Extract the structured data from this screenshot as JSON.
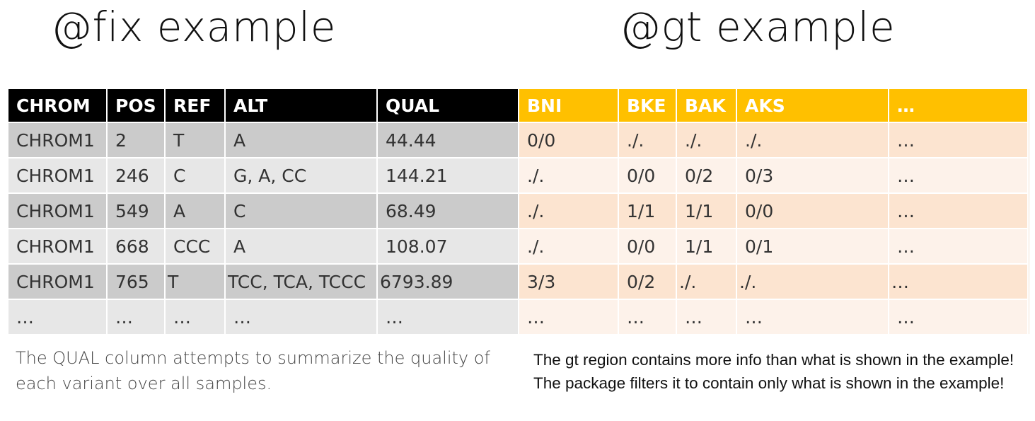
{
  "fix": {
    "title": "@fix example",
    "headers": [
      "CHROM",
      "POS",
      "REF",
      "ALT",
      "QUAL"
    ],
    "rows": [
      [
        "CHROM1",
        "2",
        "T",
        "A",
        "44.44"
      ],
      [
        "CHROM1",
        "246",
        "C",
        "G, A, CC",
        "144.21"
      ],
      [
        "CHROM1",
        "549",
        "A",
        "C",
        "68.49"
      ],
      [
        "CHROM1",
        "668",
        "CCC",
        "A",
        "108.07"
      ],
      [
        "CHROM1",
        "765",
        "T",
        "TCC, TCA, TCCC",
        "6793.89"
      ],
      [
        "…",
        "…",
        "…",
        "…",
        "…"
      ]
    ],
    "caption": "The QUAL column attempts to summarize the quality of each variant over all samples.",
    "colors": {
      "header_bg": "#000000",
      "row_dark": "#cbcbcb",
      "row_light": "#e7e7e7"
    }
  },
  "gt": {
    "title": "@gt example",
    "headers": [
      "BNI",
      "BKE",
      "BAK",
      "AKS",
      "…"
    ],
    "rows": [
      [
        "0/0",
        "./.",
        "./.",
        "./.",
        "…"
      ],
      [
        "./.",
        "0/0",
        "0/2",
        "0/3",
        "…"
      ],
      [
        "./.",
        "1/1",
        "1/1",
        "0/0",
        "…"
      ],
      [
        "./.",
        "0/0",
        "1/1",
        "0/1",
        "…"
      ],
      [
        "3/3",
        "0/2",
        "./.",
        "./.",
        "…"
      ],
      [
        "…",
        "…",
        "…",
        "…",
        "…"
      ]
    ],
    "caption": "The gt region contains more info than what is shown in the example! The package filters it to contain only what is shown in the example!",
    "colors": {
      "header_bg": "#ffc000",
      "row_dark": "#fce4d0",
      "row_light": "#fdf2ea"
    }
  }
}
